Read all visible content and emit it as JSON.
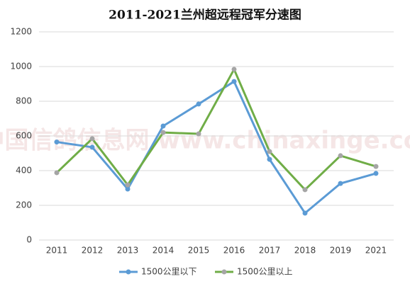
{
  "chart_data": {
    "type": "line",
    "title": "2011-2021兰州超远程冠军分速图",
    "watermark": "中国信鸽信息网 www.chinaxinge.com",
    "categories": [
      "2011",
      "2012",
      "2013",
      "2014",
      "2015",
      "2016",
      "2017",
      "2018",
      "2019",
      "2021"
    ],
    "series": [
      {
        "name": "1500公里以下",
        "color": "#5b9bd5",
        "marker_color": "#5b9bd5",
        "values": [
          565,
          535,
          294,
          657,
          784,
          914,
          465,
          155,
          326,
          384
        ]
      },
      {
        "name": "1500公里以上",
        "color": "#70ad47",
        "marker_color": "#a5a5a5",
        "values": [
          388,
          584,
          318,
          620,
          612,
          984,
          510,
          290,
          486,
          424
        ]
      }
    ],
    "ylim": [
      0,
      1200
    ],
    "yticks": [
      0,
      200,
      400,
      600,
      800,
      1000,
      1200
    ],
    "grid": true,
    "legend": "bottom"
  }
}
